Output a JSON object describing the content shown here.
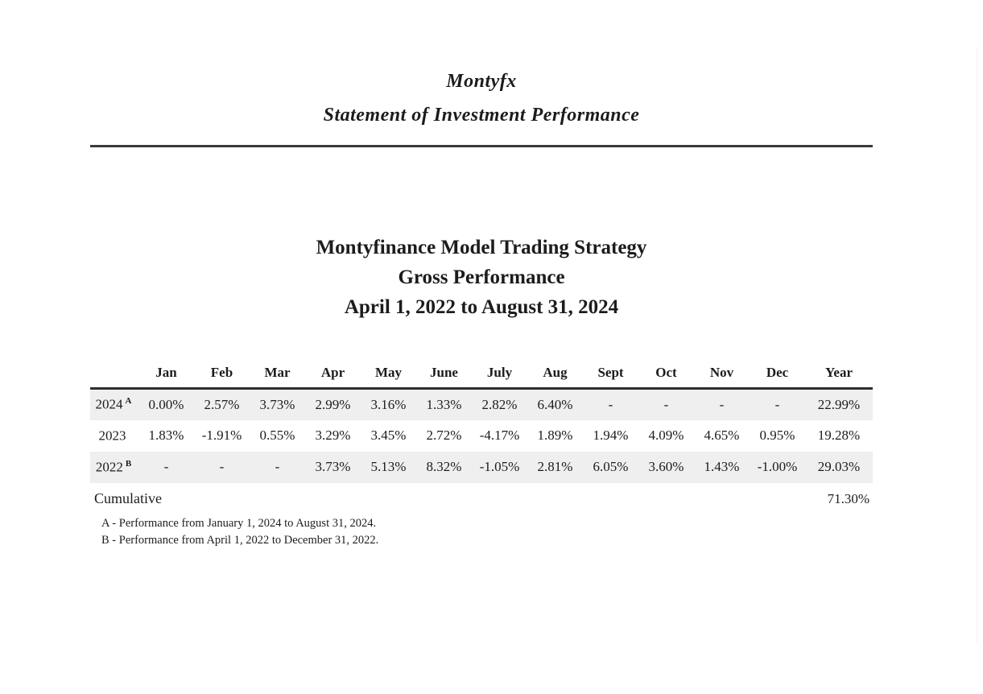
{
  "letterhead": {
    "company": "Montyfx",
    "doc_type": "Statement of Investment Performance"
  },
  "report_title": {
    "line1": "Montyfinance Model Trading Strategy",
    "line2": "Gross Performance",
    "line3": "April 1, 2022 to August 31, 2024"
  },
  "table": {
    "columns": [
      "Jan",
      "Feb",
      "Mar",
      "Apr",
      "May",
      "June",
      "July",
      "Aug",
      "Sept",
      "Oct",
      "Nov",
      "Dec",
      "Year"
    ],
    "rows": [
      {
        "year": "2024",
        "note": "A",
        "values": [
          "0.00%",
          "2.57%",
          "3.73%",
          "2.99%",
          "3.16%",
          "1.33%",
          "2.82%",
          "6.40%",
          "-",
          "-",
          "-",
          "-",
          "22.99%"
        ]
      },
      {
        "year": "2023",
        "note": "",
        "values": [
          "1.83%",
          "-1.91%",
          "0.55%",
          "3.29%",
          "3.45%",
          "2.72%",
          "-4.17%",
          "1.89%",
          "1.94%",
          "4.09%",
          "4.65%",
          "0.95%",
          "19.28%"
        ]
      },
      {
        "year": "2022",
        "note": "B",
        "values": [
          "-",
          "-",
          "-",
          "3.73%",
          "5.13%",
          "8.32%",
          "-1.05%",
          "2.81%",
          "6.05%",
          "3.60%",
          "1.43%",
          "-1.00%",
          "29.03%"
        ]
      }
    ],
    "cumulative_label": "Cumulative",
    "cumulative_value": "71.30%"
  },
  "footnotes": {
    "a": "A - Performance from January 1, 2024 to August 31, 2024.",
    "b": "B - Performance from April 1, 2022 to December 31, 2022."
  },
  "colors": {
    "page_background": "#ffffff",
    "text": "#1c1c1c",
    "row_shade": "#efefef",
    "rule": "#3a3a3a"
  }
}
